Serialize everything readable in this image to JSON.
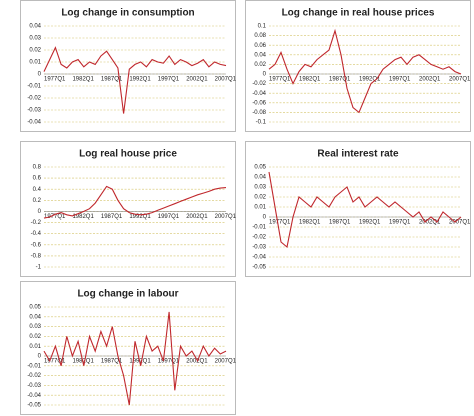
{
  "chart_data": [
    {
      "type": "line",
      "title": "Log change in consumption",
      "color": "#c0282d",
      "grid": true,
      "categories": [
        "1977Q1",
        null,
        null,
        null,
        null,
        "1982Q1",
        null,
        null,
        null,
        null,
        "1987Q1",
        null,
        null,
        null,
        null,
        "1992Q1",
        null,
        null,
        null,
        null,
        "1997Q1",
        null,
        null,
        null,
        null,
        "2002Q1",
        null,
        null,
        null,
        null,
        "2007Q1",
        null,
        null
      ],
      "values": [
        0.002,
        0.012,
        0.022,
        0.008,
        0.005,
        0.01,
        0.012,
        0.006,
        0.01,
        0.008,
        0.015,
        0.019,
        0.012,
        0.005,
        -0.033,
        0.004,
        0.008,
        0.01,
        0.006,
        0.012,
        0.01,
        0.009,
        0.015,
        0.008,
        0.012,
        0.01,
        0.007,
        0.009,
        0.012,
        0.006,
        0.01,
        0.008,
        0.007
      ],
      "ylim": [
        -0.04,
        0.04
      ],
      "yticks": [
        0.04,
        0.03,
        0.02,
        0.01,
        0,
        -0.01,
        -0.02,
        -0.03,
        -0.04
      ]
    },
    {
      "type": "line",
      "title": "Log change in real house prices",
      "color": "#c0282d",
      "grid": true,
      "categories": [
        "1977Q1",
        null,
        null,
        null,
        null,
        "1982Q1",
        null,
        null,
        null,
        null,
        "1987Q1",
        null,
        null,
        null,
        null,
        "1992Q1",
        null,
        null,
        null,
        null,
        "1997Q1",
        null,
        null,
        null,
        null,
        "2002Q1",
        null,
        null,
        null,
        null,
        "2007Q1",
        null,
        null
      ],
      "values": [
        0.01,
        0.02,
        0.045,
        0.01,
        -0.02,
        0.005,
        0.02,
        0.015,
        0.03,
        0.04,
        0.05,
        0.09,
        0.04,
        -0.03,
        -0.07,
        -0.08,
        -0.05,
        -0.02,
        -0.01,
        0.01,
        0.02,
        0.03,
        0.035,
        0.02,
        0.035,
        0.04,
        0.03,
        0.02,
        0.015,
        0.01,
        0.015,
        0.005,
        0.0
      ],
      "ylim": [
        -0.1,
        0.1
      ],
      "yticks": [
        0.1,
        0.08,
        0.06,
        0.04,
        0.02,
        0,
        -0.02,
        -0.04,
        -0.06,
        -0.08,
        -0.1
      ]
    },
    {
      "type": "line",
      "title": "Log real house price",
      "color": "#c0282d",
      "grid": true,
      "categories": [
        "1977Q1",
        null,
        null,
        null,
        null,
        "1982Q1",
        null,
        null,
        null,
        null,
        "1987Q1",
        null,
        null,
        null,
        null,
        "1992Q1",
        null,
        null,
        null,
        null,
        "1997Q1",
        null,
        null,
        null,
        null,
        "2002Q1",
        null,
        null,
        null,
        null,
        "2007Q1",
        null,
        null
      ],
      "values": [
        -0.12,
        -0.1,
        -0.05,
        -0.02,
        -0.06,
        -0.08,
        -0.04,
        0.0,
        0.05,
        0.15,
        0.3,
        0.45,
        0.4,
        0.2,
        0.05,
        -0.02,
        -0.05,
        -0.06,
        -0.05,
        -0.02,
        0.02,
        0.06,
        0.1,
        0.14,
        0.18,
        0.22,
        0.26,
        0.3,
        0.33,
        0.36,
        0.4,
        0.42,
        0.43
      ],
      "ylim": [
        -1,
        0.8
      ],
      "yticks": [
        0.8,
        0.6,
        0.4,
        0.2,
        0,
        -0.2,
        -0.4,
        -0.6,
        -0.8,
        -1
      ]
    },
    {
      "type": "line",
      "title": "Real interest rate",
      "color": "#c0282d",
      "grid": true,
      "categories": [
        "1977Q1",
        null,
        null,
        null,
        null,
        "1982Q1",
        null,
        null,
        null,
        null,
        "1987Q1",
        null,
        null,
        null,
        null,
        "1992Q1",
        null,
        null,
        null,
        null,
        "1997Q1",
        null,
        null,
        null,
        null,
        "2002Q1",
        null,
        null,
        null,
        null,
        "2007Q1",
        null,
        null
      ],
      "values": [
        0.045,
        0.01,
        -0.025,
        -0.03,
        0.0,
        0.02,
        0.015,
        0.01,
        0.02,
        0.015,
        0.01,
        0.02,
        0.025,
        0.03,
        0.015,
        0.02,
        0.01,
        0.015,
        0.02,
        0.015,
        0.01,
        0.015,
        0.01,
        0.005,
        0.0,
        0.005,
        -0.005,
        0.0,
        -0.005,
        0.005,
        0.0,
        -0.005,
        0.0
      ],
      "ylim": [
        -0.05,
        0.05
      ],
      "yticks": [
        0.05,
        0.04,
        0.03,
        0.02,
        0.01,
        0,
        -0.01,
        -0.02,
        -0.03,
        -0.04,
        -0.05
      ]
    },
    {
      "type": "line",
      "title": "Log change in labour",
      "color": "#c0282d",
      "grid": true,
      "categories": [
        "1977Q1",
        null,
        null,
        null,
        null,
        "1982Q1",
        null,
        null,
        null,
        null,
        "1987Q1",
        null,
        null,
        null,
        null,
        "1992Q1",
        null,
        null,
        null,
        null,
        "1997Q1",
        null,
        null,
        null,
        null,
        "2002Q1",
        null,
        null,
        null,
        null,
        "2007Q1",
        null,
        null
      ],
      "values": [
        0.005,
        -0.005,
        0.01,
        -0.01,
        0.02,
        0.0,
        0.015,
        -0.01,
        0.02,
        0.005,
        0.025,
        0.01,
        0.03,
        0.0,
        -0.02,
        -0.05,
        0.015,
        -0.01,
        0.02,
        0.005,
        0.01,
        -0.005,
        0.045,
        -0.035,
        0.01,
        0.0,
        0.005,
        -0.005,
        0.01,
        0.0,
        0.008,
        0.002,
        0.005
      ],
      "ylim": [
        -0.05,
        0.05
      ],
      "yticks": [
        0.05,
        0.04,
        0.03,
        0.02,
        0.01,
        0,
        -0.01,
        -0.02,
        -0.03,
        -0.04,
        -0.05
      ]
    }
  ]
}
